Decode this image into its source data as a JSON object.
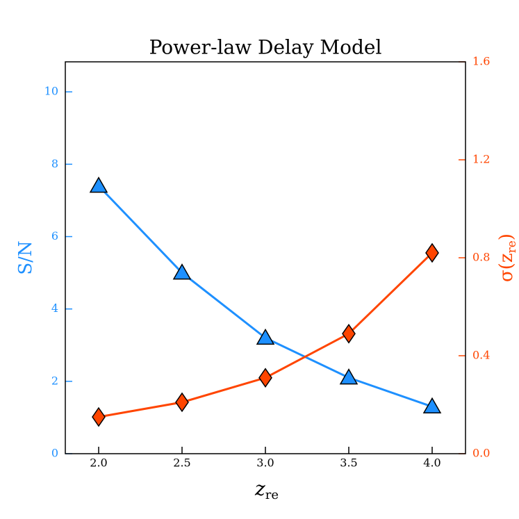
{
  "chart_data": {
    "type": "line",
    "title": "Power-law Delay Model",
    "x": [
      2.0,
      2.5,
      3.0,
      3.5,
      4.0
    ],
    "xlim": [
      1.8,
      4.2
    ],
    "xticks": [
      {
        "value": 2,
        "label": "2.0"
      },
      2.5,
      {
        "value": 3,
        "label": "3.0"
      },
      3.5,
      {
        "value": 4,
        "label": "4.0"
      }
    ],
    "ylim": [
      0,
      10.83
    ],
    "yticks": [
      0,
      2,
      4,
      6,
      8,
      10
    ],
    "y2lim": [
      0,
      1.6
    ],
    "y2ticks": [
      {
        "value": 0,
        "label": "0.0"
      },
      0.4,
      0.8,
      1.2,
      1.6
    ],
    "x_label": [
      "z",
      "re"
    ],
    "y_label": "S/N",
    "y2_label": [
      "σ(z",
      "re",
      ")"
    ],
    "series": [
      {
        "name": "S/N",
        "color": "#1e90ff",
        "marker": "triangle",
        "values": [
          7.4,
          5.0,
          3.2,
          2.1,
          1.3
        ]
      },
      {
        "name": "σ(z_re)",
        "color": "#ff4500",
        "marker": "diamond",
        "axis": "y2",
        "values": [
          0.15,
          0.21,
          0.31,
          0.49,
          0.82
        ]
      }
    ]
  }
}
